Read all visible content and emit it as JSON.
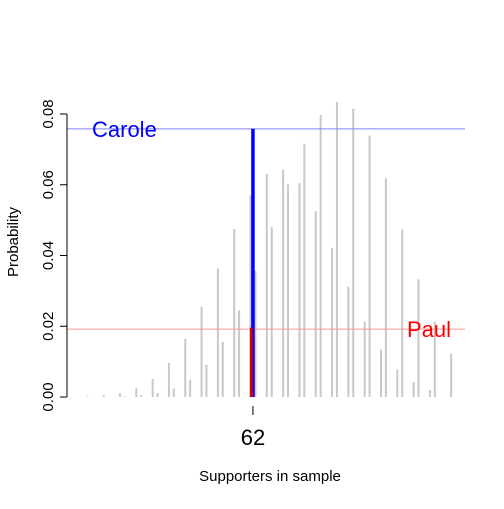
{
  "chart_data": {
    "type": "bar",
    "title": "",
    "xlabel": "Supporters in sample",
    "ylabel": "Probability",
    "ylim": [
      0,
      0.08
    ],
    "yticks": [
      0.0,
      0.02,
      0.04,
      0.06,
      0.08
    ],
    "ytick_labels": [
      "0.00",
      "0.02",
      "0.04",
      "0.06",
      "0.08"
    ],
    "xticks": [
      62
    ],
    "xtick_labels": [
      "62"
    ],
    "xlim": [
      50.6,
      75.0
    ],
    "grid": false,
    "series": [
      {
        "color": "#c8c8c8",
        "x": [
          52,
          53,
          54,
          55,
          56,
          57,
          58,
          59,
          60,
          61,
          62,
          63,
          64,
          65,
          66,
          67,
          68,
          69,
          70,
          71,
          72,
          73
        ],
        "values": [
          0.0002,
          0.0005,
          0.0011,
          0.0025,
          0.0051,
          0.0096,
          0.0164,
          0.0255,
          0.0363,
          0.0475,
          0.057,
          0.063,
          0.0643,
          0.0605,
          0.0525,
          0.0421,
          0.0312,
          0.0213,
          0.0134,
          0.0078,
          0.0042,
          0.002
        ]
      },
      {
        "color": "#c8c8c8",
        "x": [
          54,
          55,
          56,
          57,
          58,
          59,
          60,
          61,
          62,
          63,
          64,
          65,
          66,
          67,
          68,
          69,
          70,
          71,
          72,
          73,
          74
        ],
        "values": [
          0.0002,
          0.0005,
          0.0011,
          0.0024,
          0.0049,
          0.0091,
          0.0156,
          0.0245,
          0.0357,
          0.048,
          0.0601,
          0.0716,
          0.0797,
          0.0834,
          0.0815,
          0.0739,
          0.0618,
          0.0474,
          0.0333,
          0.0213,
          0.0123
        ]
      }
    ],
    "highlights": [
      {
        "x": 62.0,
        "value": 0.0758,
        "color": "#0000ff"
      },
      {
        "x": 61.9,
        "value": 0.0196,
        "color": "#d40000"
      }
    ],
    "hlines": [
      {
        "value": 0.0758,
        "color": "#8080ff",
        "label": "Carole",
        "label_color": "#0000ff",
        "label_side": "left"
      },
      {
        "value": 0.0192,
        "color": "#ff9999",
        "label": "Paul",
        "label_color": "#ff0000",
        "label_side": "right"
      }
    ]
  }
}
